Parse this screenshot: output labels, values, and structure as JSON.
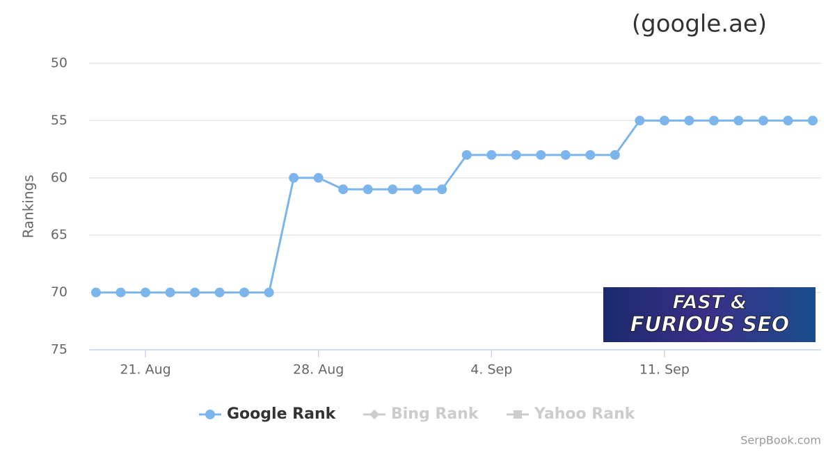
{
  "chart_data": {
    "type": "line",
    "title": "(google.ae)",
    "y_label": "Rankings",
    "credits": "SerpBook.com",
    "banner": [
      "FAST &",
      "FURIOUS SEO"
    ],
    "categories": [
      null,
      null,
      "21. Aug",
      null,
      null,
      null,
      null,
      null,
      null,
      "28. Aug",
      null,
      null,
      null,
      null,
      null,
      null,
      "4. Sep",
      null,
      null,
      null,
      null,
      null,
      null,
      "11. Sep",
      null,
      null,
      null,
      null,
      null,
      null
    ],
    "series": [
      {
        "name": "Google Rank",
        "color": "#7cb5ec",
        "marker": "circle",
        "visible": true,
        "values": [
          70,
          70,
          70,
          70,
          70,
          70,
          70,
          70,
          60,
          60,
          61,
          61,
          61,
          61,
          61,
          58,
          58,
          58,
          58,
          58,
          58,
          58,
          55,
          55,
          55,
          55,
          55,
          55,
          55,
          55
        ]
      },
      {
        "name": "Bing Rank",
        "color": "#cccccc",
        "marker": "diamond",
        "visible": false,
        "values": [
          null,
          null,
          null,
          null,
          null,
          null,
          null,
          null,
          null,
          null,
          null,
          null,
          null,
          null,
          null,
          null,
          null,
          null,
          null,
          null,
          null,
          null,
          null,
          null,
          null,
          null,
          null,
          null,
          null,
          null
        ]
      },
      {
        "name": "Yahoo Rank",
        "color": "#cccccc",
        "marker": "square",
        "visible": false,
        "values": [
          null,
          null,
          null,
          null,
          null,
          null,
          null,
          null,
          null,
          null,
          null,
          null,
          null,
          null,
          null,
          null,
          null,
          null,
          null,
          null,
          null,
          null,
          null,
          null,
          null,
          null,
          null,
          null,
          null,
          null
        ]
      }
    ],
    "ylim": [
      50,
      75
    ],
    "reversed": true,
    "yticks": [
      50,
      55,
      60,
      65,
      70,
      75
    ],
    "grid": true
  }
}
